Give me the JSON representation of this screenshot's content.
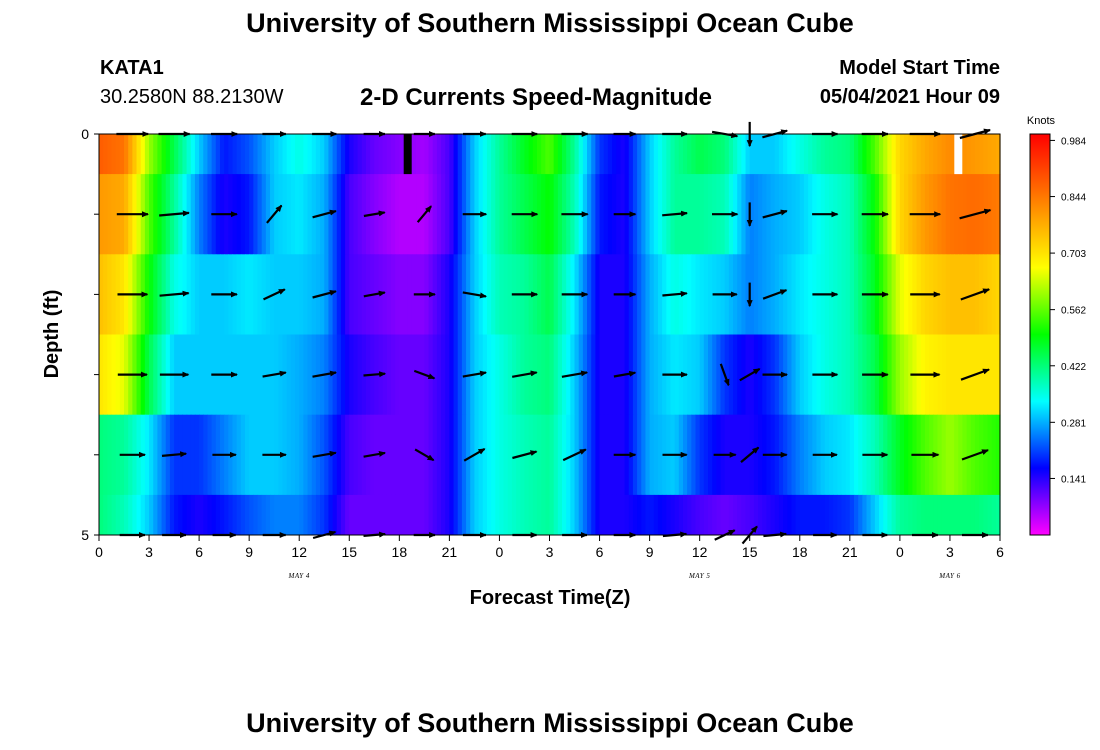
{
  "header": {
    "title": "University of Southern Mississippi Ocean Cube",
    "station": "KATA1",
    "coordinates": "30.2580N  88.2130W",
    "subtitle": "2-D Currents Speed-Magnitude",
    "model_start_label": "Model Start Time",
    "model_start_value": "05/04/2021 Hour 09"
  },
  "footer": {
    "title": "University of Southern Mississippi Ocean Cube"
  },
  "chart_data": {
    "type": "heatmap",
    "title": "2-D Currents Speed-Magnitude",
    "xlabel": "Forecast Time(Z)",
    "ylabel": "Depth (ft)",
    "x_tick_labels": [
      "0",
      "3",
      "6",
      "9",
      "12",
      "15",
      "18",
      "21",
      "0",
      "3",
      "6",
      "9",
      "12",
      "15",
      "18",
      "21",
      "0",
      "3",
      "6"
    ],
    "date_labels": [
      {
        "label": "MAY 4",
        "at_hour": 12
      },
      {
        "label": "MAY 5",
        "at_hour": 36
      },
      {
        "label": "MAY 6",
        "at_hour": 51
      }
    ],
    "x_range_hours": [
      0,
      54
    ],
    "y_range_ft": [
      0,
      5
    ],
    "y_tick_labels": [
      {
        "value": 0,
        "label": "0"
      },
      {
        "value": 5,
        "label": "5"
      }
    ],
    "colorbar": {
      "label": "Knots",
      "min": 0.0,
      "max": 1.0,
      "ticks": [
        0.984,
        0.844,
        0.703,
        0.562,
        0.422,
        0.281,
        0.141
      ],
      "colors": [
        "#ff00ff",
        "#8000ff",
        "#0000ff",
        "#0080ff",
        "#00ffff",
        "#00ff80",
        "#00ff00",
        "#80ff00",
        "#ffff00",
        "#ffc000",
        "#ff8000",
        "#ff4000",
        "#ff0000"
      ]
    },
    "speed_key_hours": [
      0,
      1.5,
      3,
      4.5,
      6,
      7.5,
      9,
      10.5,
      12,
      13.5,
      15,
      16.5,
      18,
      19.5,
      21,
      22.5,
      24,
      25.5,
      27,
      28.5,
      30,
      31.5,
      33,
      34.5,
      36,
      37.5,
      39,
      40.5,
      42,
      43.5,
      45,
      46.5,
      48,
      49.5,
      51,
      52.5,
      54
    ],
    "depth_levels_ft": [
      0,
      1,
      2,
      3,
      4,
      5
    ],
    "speed_knots": [
      [
        0.88,
        0.85,
        0.6,
        0.45,
        0.3,
        0.18,
        0.22,
        0.3,
        0.35,
        0.3,
        0.15,
        0.1,
        0.08,
        0.06,
        0.12,
        0.3,
        0.4,
        0.48,
        0.55,
        0.4,
        0.2,
        0.15,
        0.3,
        0.4,
        0.45,
        0.42,
        0.3,
        0.3,
        0.35,
        0.4,
        0.42,
        0.55,
        0.72,
        0.78,
        0.82,
        0.8,
        0.78
      ],
      [
        0.8,
        0.78,
        0.55,
        0.4,
        0.25,
        0.15,
        0.18,
        0.3,
        0.32,
        0.28,
        0.12,
        0.08,
        0.05,
        0.05,
        0.12,
        0.3,
        0.4,
        0.45,
        0.5,
        0.38,
        0.18,
        0.15,
        0.3,
        0.4,
        0.4,
        0.38,
        0.25,
        0.28,
        0.3,
        0.35,
        0.38,
        0.5,
        0.72,
        0.8,
        0.85,
        0.86,
        0.84
      ],
      [
        0.75,
        0.7,
        0.5,
        0.35,
        0.3,
        0.3,
        0.32,
        0.3,
        0.3,
        0.28,
        0.12,
        0.1,
        0.08,
        0.08,
        0.15,
        0.3,
        0.38,
        0.4,
        0.45,
        0.32,
        0.15,
        0.15,
        0.28,
        0.35,
        0.32,
        0.3,
        0.25,
        0.28,
        0.32,
        0.35,
        0.38,
        0.48,
        0.65,
        0.72,
        0.75,
        0.75,
        0.72
      ],
      [
        0.7,
        0.65,
        0.45,
        0.3,
        0.3,
        0.3,
        0.3,
        0.3,
        0.28,
        0.25,
        0.15,
        0.12,
        0.1,
        0.1,
        0.15,
        0.3,
        0.35,
        0.4,
        0.42,
        0.3,
        0.15,
        0.15,
        0.28,
        0.32,
        0.3,
        0.2,
        0.15,
        0.2,
        0.3,
        0.35,
        0.38,
        0.45,
        0.6,
        0.68,
        0.7,
        0.7,
        0.7
      ],
      [
        0.42,
        0.4,
        0.32,
        0.2,
        0.2,
        0.25,
        0.3,
        0.3,
        0.28,
        0.22,
        0.12,
        0.1,
        0.1,
        0.1,
        0.15,
        0.3,
        0.35,
        0.38,
        0.4,
        0.3,
        0.15,
        0.15,
        0.28,
        0.3,
        0.2,
        0.15,
        0.15,
        0.18,
        0.25,
        0.3,
        0.32,
        0.38,
        0.48,
        0.55,
        0.6,
        0.55,
        0.52
      ],
      [
        0.42,
        0.38,
        0.3,
        0.18,
        0.15,
        0.18,
        0.22,
        0.25,
        0.25,
        0.2,
        0.1,
        0.1,
        0.1,
        0.1,
        0.15,
        0.3,
        0.35,
        0.38,
        0.4,
        0.3,
        0.15,
        0.15,
        0.18,
        0.15,
        0.12,
        0.1,
        0.12,
        0.15,
        0.18,
        0.18,
        0.2,
        0.3,
        0.4,
        0.42,
        0.42,
        0.42,
        0.4
      ]
    ],
    "vector_hours": [
      2,
      4.5,
      7.5,
      10.5,
      13.5,
      16.5,
      19.5,
      22.5,
      25.5,
      28.5,
      31.5,
      34.5,
      37.5,
      39,
      40.5,
      43.5,
      46.5,
      49.5,
      52.5
    ],
    "vectors_row_depths_ft": [
      0,
      1,
      2,
      3,
      4,
      5
    ],
    "vector_angles_deg": [
      [
        0,
        0,
        0,
        0,
        0,
        0,
        0,
        0,
        0,
        0,
        0,
        0,
        -10,
        -90,
        15,
        0,
        0,
        0,
        15
      ],
      [
        0,
        5,
        0,
        50,
        15,
        10,
        50,
        0,
        0,
        0,
        0,
        5,
        0,
        -90,
        15,
        0,
        0,
        0,
        15
      ],
      [
        0,
        5,
        0,
        25,
        15,
        10,
        0,
        -10,
        0,
        0,
        0,
        5,
        0,
        -90,
        20,
        0,
        0,
        0,
        20
      ],
      [
        0,
        0,
        0,
        10,
        10,
        5,
        -20,
        10,
        10,
        10,
        10,
        0,
        -70,
        30,
        0,
        0,
        0,
        0,
        20
      ],
      [
        0,
        5,
        0,
        0,
        10,
        10,
        -30,
        30,
        15,
        25,
        0,
        0,
        0,
        40,
        0,
        0,
        0,
        0,
        20
      ],
      [
        0,
        0,
        0,
        0,
        15,
        5,
        0,
        0,
        0,
        0,
        0,
        5,
        25,
        50,
        5,
        0,
        0,
        0,
        0
      ]
    ],
    "vector_speeds_knots": [
      [
        0.85,
        0.8,
        0.45,
        0.25,
        0.3,
        0.1,
        0.08,
        0.2,
        0.4,
        0.45,
        0.15,
        0.35,
        0.4,
        0.3,
        0.4,
        0.4,
        0.45,
        0.75,
        0.8
      ],
      [
        0.8,
        0.7,
        0.4,
        0.2,
        0.3,
        0.08,
        0.06,
        0.25,
        0.4,
        0.45,
        0.12,
        0.35,
        0.38,
        0.25,
        0.35,
        0.38,
        0.45,
        0.75,
        0.85
      ],
      [
        0.7,
        0.65,
        0.4,
        0.25,
        0.3,
        0.1,
        0.08,
        0.25,
        0.38,
        0.4,
        0.12,
        0.32,
        0.3,
        0.25,
        0.35,
        0.35,
        0.42,
        0.68,
        0.72
      ],
      [
        0.65,
        0.6,
        0.4,
        0.25,
        0.28,
        0.12,
        0.1,
        0.25,
        0.35,
        0.4,
        0.12,
        0.32,
        0.2,
        0.2,
        0.32,
        0.35,
        0.4,
        0.65,
        0.7
      ],
      [
        0.38,
        0.3,
        0.25,
        0.25,
        0.25,
        0.12,
        0.1,
        0.25,
        0.35,
        0.35,
        0.12,
        0.3,
        0.15,
        0.2,
        0.28,
        0.3,
        0.35,
        0.5,
        0.55
      ],
      [
        0.38,
        0.28,
        0.22,
        0.22,
        0.22,
        0.12,
        0.1,
        0.22,
        0.3,
        0.35,
        0.12,
        0.25,
        0.15,
        0.18,
        0.2,
        0.25,
        0.35,
        0.42,
        0.42
      ]
    ],
    "gap_hours": [
      18.5,
      51.5
    ]
  }
}
